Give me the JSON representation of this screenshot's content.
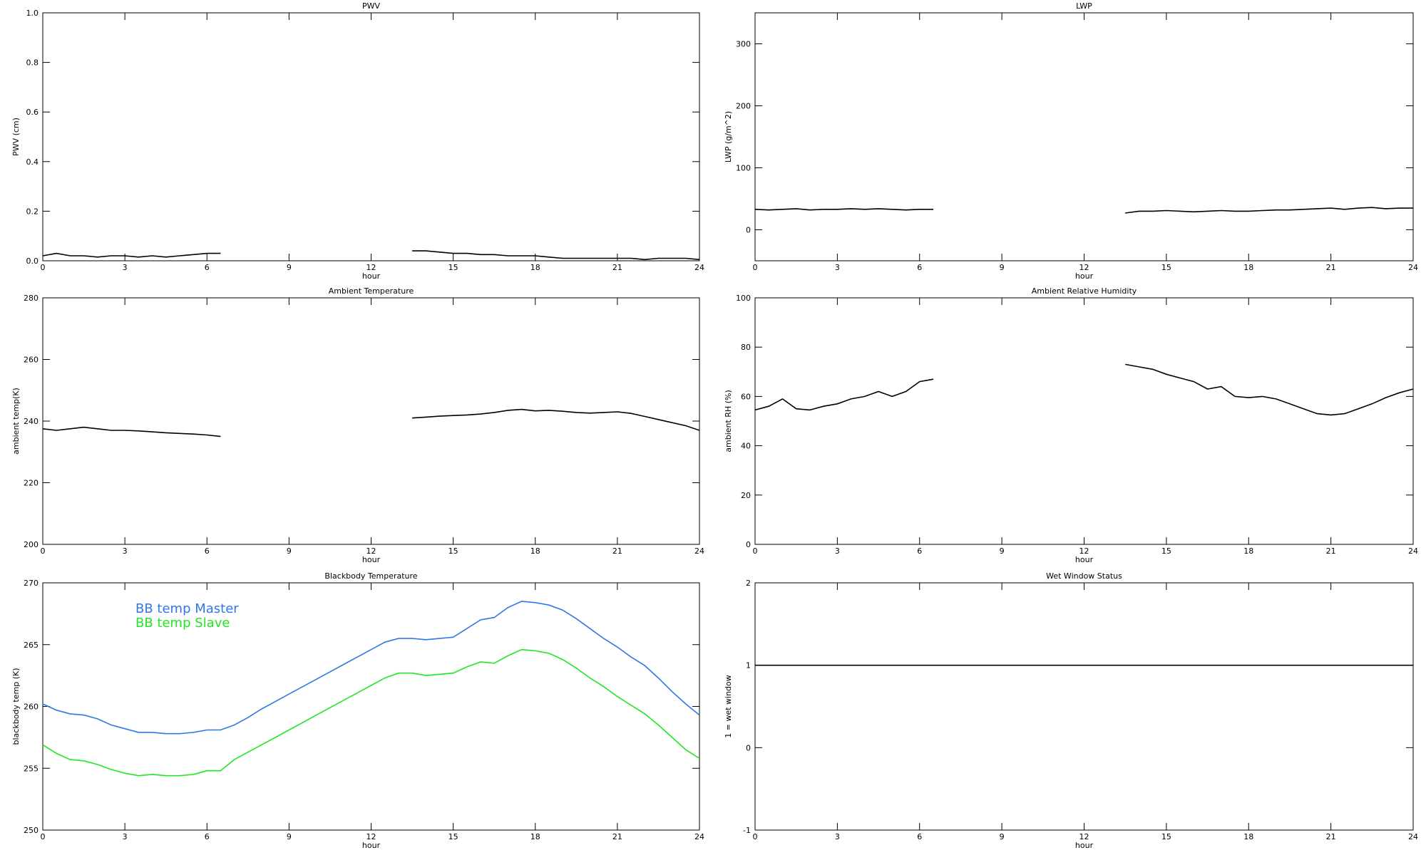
{
  "chart_data": [
    {
      "type": "line",
      "title": "PWV",
      "ylabel": "PWV (cm)",
      "xlabel": "hour",
      "x": [
        0,
        0.5,
        1,
        1.5,
        2,
        2.5,
        3,
        3.5,
        4,
        4.5,
        5,
        5.5,
        6,
        6.5,
        7,
        7.5,
        8,
        8.5,
        9,
        9.5,
        10,
        10.5,
        11,
        11.5,
        12,
        12.5,
        13,
        13.5,
        14,
        14.5,
        15,
        15.5,
        16,
        16.5,
        17,
        17.5,
        18,
        18.5,
        19,
        19.5,
        20,
        20.5,
        21,
        21.5,
        22,
        22.5,
        23,
        23.5,
        24
      ],
      "series": [
        {
          "color": "#000000",
          "values": [
            0.02,
            0.03,
            0.02,
            0.02,
            0.015,
            0.02,
            0.02,
            0.015,
            0.02,
            0.015,
            0.02,
            0.025,
            0.03,
            0.03,
            null,
            null,
            null,
            null,
            null,
            null,
            null,
            null,
            null,
            null,
            null,
            null,
            null,
            0.04,
            0.04,
            0.035,
            0.03,
            0.03,
            0.025,
            0.025,
            0.02,
            0.02,
            0.02,
            0.015,
            0.01,
            0.01,
            0.01,
            0.01,
            0.01,
            0.01,
            0.005,
            0.01,
            0.01,
            0.01,
            0.005
          ]
        }
      ],
      "xlim": [
        0,
        24
      ],
      "xticks": [
        0,
        3,
        6,
        9,
        12,
        15,
        18,
        21,
        24
      ],
      "ylim": [
        0,
        1
      ],
      "yticks": [
        {
          "value": 0,
          "label": "0.0"
        },
        0.2,
        0.4,
        0.6,
        0.8,
        {
          "value": 1,
          "label": "1.0"
        }
      ]
    },
    {
      "type": "line",
      "title": "LWP",
      "ylabel": "LWP (g/m^2)",
      "xlabel": "hour",
      "x": [
        0,
        0.5,
        1,
        1.5,
        2,
        2.5,
        3,
        3.5,
        4,
        4.5,
        5,
        5.5,
        6,
        6.5,
        7,
        7.5,
        8,
        8.5,
        9,
        9.5,
        10,
        10.5,
        11,
        11.5,
        12,
        12.5,
        13,
        13.5,
        14,
        14.5,
        15,
        15.5,
        16,
        16.5,
        17,
        17.5,
        18,
        18.5,
        19,
        19.5,
        20,
        20.5,
        21,
        21.5,
        22,
        22.5,
        23,
        23.5,
        24
      ],
      "series": [
        {
          "color": "#000000",
          "values": [
            33,
            32,
            33,
            34,
            32,
            33,
            33,
            34,
            33,
            34,
            33,
            32,
            33,
            33,
            null,
            null,
            null,
            null,
            null,
            null,
            null,
            null,
            null,
            null,
            null,
            null,
            null,
            27,
            30,
            30,
            31,
            30,
            29,
            30,
            31,
            30,
            30,
            31,
            32,
            32,
            33,
            34,
            35,
            33,
            35,
            36,
            34,
            35,
            35
          ]
        }
      ],
      "xlim": [
        0,
        24
      ],
      "xticks": [
        0,
        3,
        6,
        9,
        12,
        15,
        18,
        21,
        24
      ],
      "ylim": [
        -50,
        350
      ],
      "yticks": [
        0,
        100,
        200,
        300
      ]
    },
    {
      "type": "line",
      "title": "Ambient Temperature",
      "ylabel": "ambient temp(K)",
      "xlabel": "hour",
      "x": [
        0,
        0.5,
        1,
        1.5,
        2,
        2.5,
        3,
        3.5,
        4,
        4.5,
        5,
        5.5,
        6,
        6.5,
        7,
        7.5,
        8,
        8.5,
        9,
        9.5,
        10,
        10.5,
        11,
        11.5,
        12,
        12.5,
        13,
        13.5,
        14,
        14.5,
        15,
        15.5,
        16,
        16.5,
        17,
        17.5,
        18,
        18.5,
        19,
        19.5,
        20,
        20.5,
        21,
        21.5,
        22,
        22.5,
        23,
        23.5,
        24
      ],
      "series": [
        {
          "color": "#000000",
          "values": [
            237.5,
            237,
            237.5,
            238,
            237.5,
            237,
            237,
            236.8,
            236.5,
            236.2,
            236,
            235.8,
            235.5,
            235,
            null,
            null,
            null,
            null,
            null,
            null,
            null,
            null,
            null,
            null,
            null,
            null,
            null,
            241,
            241.3,
            241.6,
            241.8,
            242,
            242.3,
            242.8,
            243.5,
            243.8,
            243.3,
            243.5,
            243.2,
            242.8,
            242.6,
            242.8,
            243,
            242.5,
            241.5,
            240.5,
            239.5,
            238.5,
            237
          ]
        }
      ],
      "xlim": [
        0,
        24
      ],
      "xticks": [
        0,
        3,
        6,
        9,
        12,
        15,
        18,
        21,
        24
      ],
      "ylim": [
        200,
        280
      ],
      "yticks": [
        200,
        220,
        240,
        260,
        280
      ]
    },
    {
      "type": "line",
      "title": "Ambient Relative Humidity",
      "ylabel": "ambient RH (%)",
      "xlabel": "hour",
      "x": [
        0,
        0.5,
        1,
        1.5,
        2,
        2.5,
        3,
        3.5,
        4,
        4.5,
        5,
        5.5,
        6,
        6.5,
        7,
        7.5,
        8,
        8.5,
        9,
        9.5,
        10,
        10.5,
        11,
        11.5,
        12,
        12.5,
        13,
        13.5,
        14,
        14.5,
        15,
        15.5,
        16,
        16.5,
        17,
        17.5,
        18,
        18.5,
        19,
        19.5,
        20,
        20.5,
        21,
        21.5,
        22,
        22.5,
        23,
        23.5,
        24
      ],
      "series": [
        {
          "color": "#000000",
          "values": [
            54.5,
            56,
            59,
            55,
            54.5,
            56,
            57,
            59,
            60,
            62,
            60,
            62,
            66,
            67,
            null,
            null,
            null,
            null,
            null,
            null,
            null,
            null,
            null,
            null,
            null,
            null,
            null,
            73,
            72,
            71,
            69,
            67.5,
            66,
            63,
            64,
            60,
            59.5,
            60,
            59,
            57,
            55,
            53,
            52.5,
            53,
            55,
            57,
            59.5,
            61.5,
            63
          ]
        }
      ],
      "xlim": [
        0,
        24
      ],
      "xticks": [
        0,
        3,
        6,
        9,
        12,
        15,
        18,
        21,
        24
      ],
      "ylim": [
        0,
        100
      ],
      "yticks": [
        0,
        20,
        40,
        60,
        80,
        100
      ]
    },
    {
      "type": "line",
      "title": "Blackbody Temperature",
      "ylabel": "blackbody temp (K)",
      "xlabel": "hour",
      "x": [
        0,
        0.5,
        1,
        1.5,
        2,
        2.5,
        3,
        3.5,
        4,
        4.5,
        5,
        5.5,
        6,
        6.5,
        7,
        7.5,
        8,
        8.5,
        9,
        9.5,
        10,
        10.5,
        11,
        11.5,
        12,
        12.5,
        13,
        13.5,
        14,
        14.5,
        15,
        15.5,
        16,
        16.5,
        17,
        17.5,
        18,
        18.5,
        19,
        19.5,
        20,
        20.5,
        21,
        21.5,
        22,
        22.5,
        23,
        23.5,
        24
      ],
      "series": [
        {
          "name": "BB temp Master",
          "color": "#2f78e6",
          "values": [
            260.2,
            259.7,
            259.4,
            259.3,
            259,
            258.5,
            258.2,
            257.9,
            257.9,
            257.8,
            257.8,
            257.9,
            258.1,
            258.1,
            258.5,
            259.1,
            259.8,
            260.4,
            261,
            261.6,
            262.2,
            262.8,
            263.4,
            264,
            264.6,
            265.2,
            265.5,
            265.5,
            265.4,
            265.5,
            265.6,
            266.3,
            267,
            267.2,
            268,
            268.5,
            268.4,
            268.2,
            267.8,
            267.1,
            266.3,
            265.5,
            264.8,
            264,
            263.3,
            262.3,
            261.2,
            260.2,
            259.3
          ]
        },
        {
          "name": "BB temp Slave",
          "color": "#22e622",
          "values": [
            256.9,
            256.2,
            255.7,
            255.6,
            255.3,
            254.9,
            254.6,
            254.4,
            254.5,
            254.4,
            254.4,
            254.5,
            254.8,
            254.8,
            255.7,
            256.3,
            256.9,
            257.5,
            258.1,
            258.7,
            259.3,
            259.9,
            260.5,
            261.1,
            261.7,
            262.3,
            262.7,
            262.7,
            262.5,
            262.6,
            262.7,
            263.2,
            263.6,
            263.5,
            264.1,
            264.6,
            264.5,
            264.3,
            263.8,
            263.1,
            262.3,
            261.6,
            260.8,
            260.1,
            259.4,
            258.5,
            257.5,
            256.5,
            255.8
          ]
        }
      ],
      "xlim": [
        0,
        24
      ],
      "xticks": [
        0,
        3,
        6,
        9,
        12,
        15,
        18,
        21,
        24
      ],
      "ylim": [
        250,
        270
      ],
      "yticks": [
        250,
        255,
        260,
        265,
        270
      ]
    },
    {
      "type": "line",
      "title": "Wet Window Status",
      "ylabel": "1 = wet window",
      "xlabel": "hour",
      "x": [
        0,
        24
      ],
      "series": [
        {
          "color": "#000000",
          "values": [
            1,
            1
          ]
        }
      ],
      "xlim": [
        0,
        24
      ],
      "xticks": [
        0,
        3,
        6,
        9,
        12,
        15,
        18,
        21,
        24
      ],
      "ylim": [
        -1,
        2
      ],
      "yticks": [
        -1,
        0,
        1,
        2
      ]
    }
  ]
}
